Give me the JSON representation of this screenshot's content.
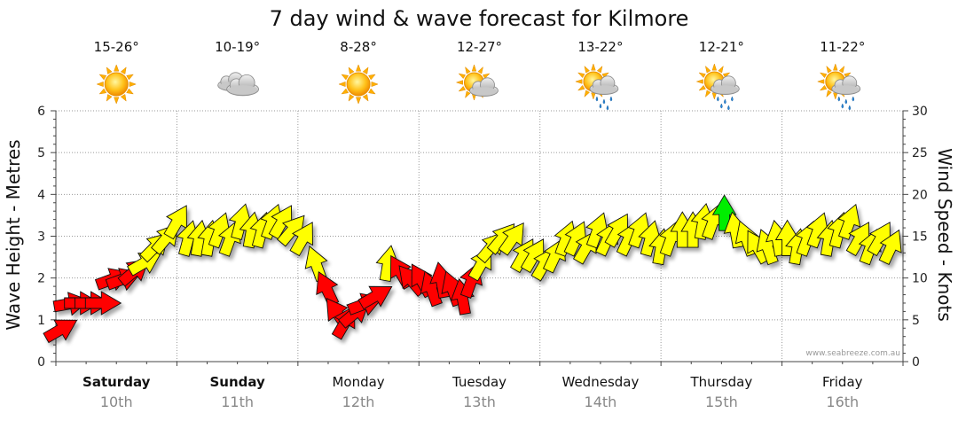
{
  "chart_data": {
    "type": "scatter",
    "title": "7 day wind & wave forecast for Kilmore",
    "ylabel_left": "Wave Height - Metres",
    "ylabel_right": "Wind Speed - Knots",
    "ylim_left": [
      0,
      6
    ],
    "ylim_right": [
      0,
      30
    ],
    "yticks_left": [
      "0",
      "1",
      "2",
      "3",
      "4",
      "5",
      "6"
    ],
    "yticks_right": [
      "0",
      "5",
      "10",
      "15",
      "20",
      "25",
      "30"
    ],
    "grid": true,
    "credit": "www.seabreeze.com.au",
    "days": [
      {
        "day": "Saturday",
        "date": "10th",
        "temp": "15-26°",
        "icon": "sunny-icon",
        "bold": true
      },
      {
        "day": "Sunday",
        "date": "11th",
        "temp": "10-19°",
        "icon": "cloudy-icon",
        "bold": true
      },
      {
        "day": "Monday",
        "date": "12th",
        "temp": "8-28°",
        "icon": "sunny-icon",
        "bold": false
      },
      {
        "day": "Tuesday",
        "date": "13th",
        "temp": "12-27°",
        "icon": "partly-cloudy-icon",
        "bold": false
      },
      {
        "day": "Wednesday",
        "date": "14th",
        "temp": "13-22°",
        "icon": "sun-showers-icon",
        "bold": false
      },
      {
        "day": "Thursday",
        "date": "15th",
        "temp": "12-21°",
        "icon": "sun-showers-icon",
        "bold": false
      },
      {
        "day": "Friday",
        "date": "16th",
        "temp": "11-22°",
        "icon": "sun-showers-icon",
        "bold": false
      }
    ],
    "colors": {
      "light": "#ff0000",
      "moderate": "#ffff00",
      "strong": "#00ee00"
    },
    "wind_series": {
      "name": "Wind Speed",
      "step_hours": 3,
      "values": [
        4,
        7,
        7,
        7,
        7,
        10,
        10,
        11,
        12,
        14,
        15,
        17,
        15,
        15,
        15,
        16,
        15,
        17,
        16,
        16,
        17,
        17,
        16,
        15,
        12,
        9,
        6,
        5,
        6,
        7,
        8,
        12,
        11,
        10,
        10,
        9,
        10,
        9,
        8,
        10,
        12,
        14,
        15,
        15,
        13,
        13,
        12,
        13,
        15,
        15,
        14,
        16,
        15,
        16,
        15,
        16,
        15,
        14,
        15,
        16,
        16,
        17,
        17,
        18,
        16,
        15,
        14,
        14,
        15,
        15,
        14,
        15,
        16,
        15,
        16,
        17,
        15,
        14,
        15,
        14
      ]
    },
    "wind_dir_deg": [
      60,
      80,
      90,
      90,
      90,
      70,
      70,
      50,
      60,
      45,
      40,
      30,
      15,
      10,
      10,
      20,
      20,
      15,
      10,
      15,
      20,
      30,
      40,
      30,
      -20,
      -25,
      -35,
      30,
      50,
      70,
      60,
      10,
      -30,
      -40,
      -30,
      -20,
      -10,
      -20,
      -10,
      20,
      30,
      40,
      40,
      35,
      30,
      30,
      30,
      25,
      20,
      25,
      30,
      20,
      25,
      30,
      25,
      20,
      15,
      10,
      20,
      0,
      0,
      10,
      20,
      0,
      -10,
      -20,
      -30,
      -20,
      -10,
      0,
      10,
      20,
      20,
      10,
      15,
      20,
      30,
      20,
      30,
      25
    ]
  }
}
